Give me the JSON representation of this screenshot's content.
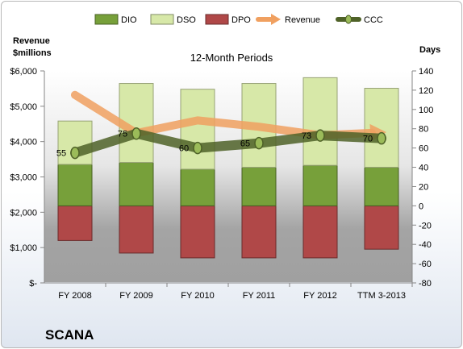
{
  "chart_data": {
    "type": "bar",
    "title": "12-Month Periods",
    "company": "SCANA",
    "y_left_label_line1": "Revenue",
    "y_left_label_line2": "$millions",
    "y_right_label": "Days",
    "categories": [
      "FY 2008",
      "FY 2009",
      "FY 2010",
      "FY 2011",
      "FY 2012",
      "TTM 3-2013"
    ],
    "left_axis": {
      "min": 0,
      "max": 6000,
      "step": 1000,
      "ticks": [
        "$-",
        "$1,000",
        "$2,000",
        "$3,000",
        "$4,000",
        "$5,000",
        "$6,000"
      ]
    },
    "right_axis": {
      "min": -80,
      "max": 140,
      "step": 20,
      "ticks": [
        "-80",
        "-60",
        "-40",
        "-20",
        "0",
        "20",
        "40",
        "60",
        "80",
        "100",
        "120",
        "140"
      ]
    },
    "series": [
      {
        "name": "DIO",
        "axis": "days",
        "stack": "positive",
        "color": "#77a03a",
        "values": [
          43,
          45,
          38,
          40,
          42,
          40
        ]
      },
      {
        "name": "DSO",
        "axis": "days",
        "stack": "positive",
        "color": "#d7e8a8",
        "values": [
          45,
          82,
          83,
          87,
          91,
          82
        ]
      },
      {
        "name": "DPO",
        "axis": "days",
        "stack": "negative",
        "color": "#b04848",
        "values": [
          -36,
          -49,
          -54,
          -54,
          -54,
          -45
        ]
      },
      {
        "name": "Revenue",
        "axis": "revenue",
        "type": "line",
        "color": "#f0a060",
        "values": [
          5320,
          4240,
          4600,
          4420,
          4180,
          4260
        ]
      },
      {
        "name": "CCC",
        "axis": "days",
        "type": "line",
        "color": "#4f6228",
        "values": [
          55,
          75,
          60,
          65,
          73,
          70
        ],
        "labels": [
          "55",
          "75",
          "60",
          "65",
          "73",
          "70"
        ]
      }
    ],
    "legend": {
      "placement": "top",
      "items": [
        "DIO",
        "DSO",
        "DPO",
        "Revenue",
        "CCC"
      ]
    },
    "grid": false
  }
}
